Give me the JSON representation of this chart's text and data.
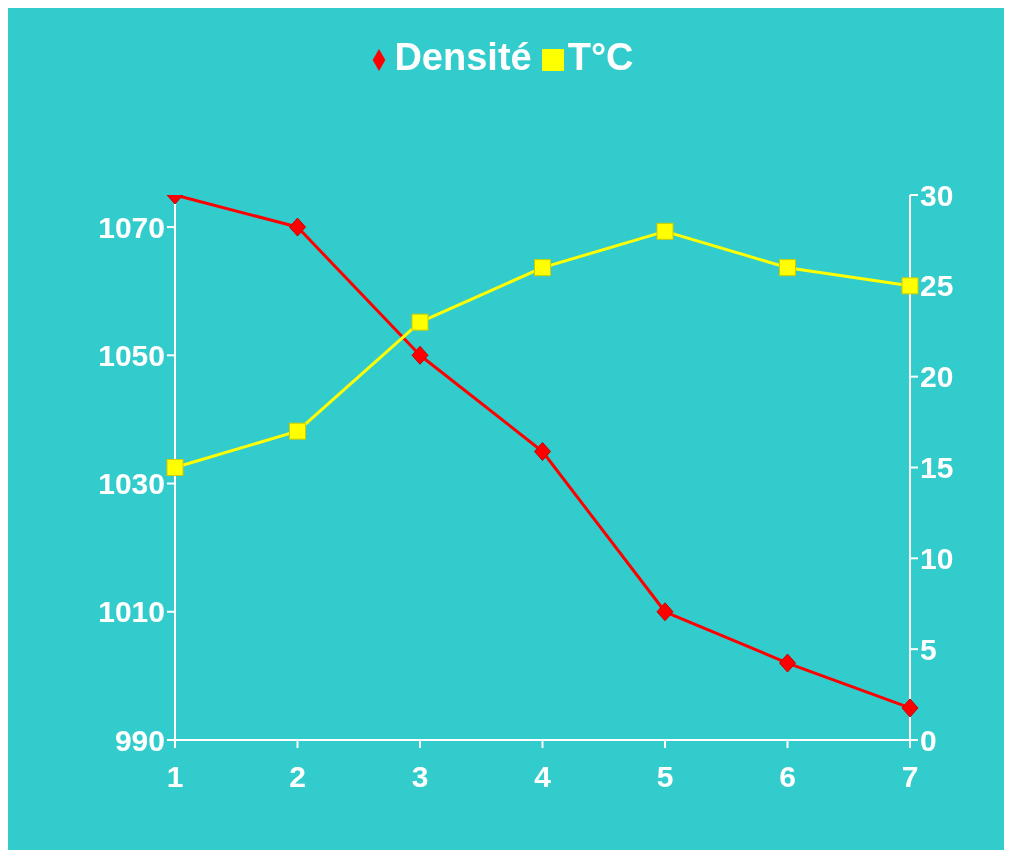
{
  "chart_data": {
    "type": "line",
    "categories": [
      "1",
      "2",
      "3",
      "4",
      "5",
      "6",
      "7"
    ],
    "series": [
      {
        "name": "Densité",
        "color": "#ff0000",
        "marker": "diamond",
        "values": [
          1075,
          1070,
          1050,
          1035,
          1010,
          1002,
          995
        ]
      },
      {
        "name": "T°C",
        "color": "#ffff00",
        "marker": "square",
        "axis": "y2",
        "values": [
          15,
          17,
          23,
          26,
          28,
          26,
          25
        ]
      }
    ],
    "ylim": [
      990,
      1075
    ],
    "yticks": [
      990,
      1010,
      1030,
      1050,
      1070
    ],
    "y2lim": [
      0,
      30
    ],
    "y2ticks": [
      0,
      5,
      10,
      15,
      20,
      25,
      30
    ],
    "grid": false,
    "legend": "top"
  }
}
